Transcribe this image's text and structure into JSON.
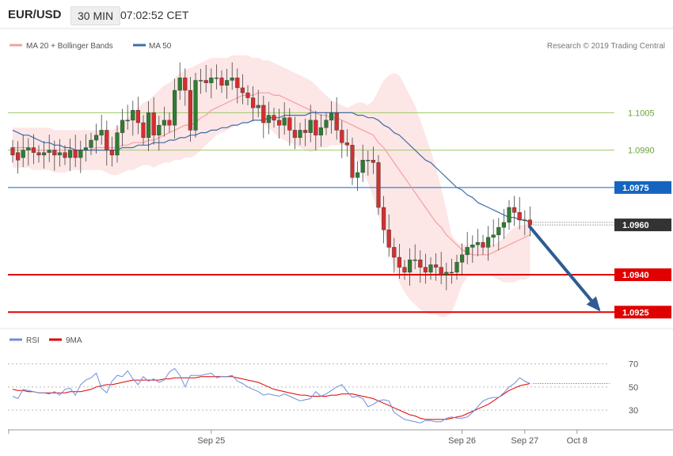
{
  "header": {
    "symbol": "EUR/USD",
    "timeframe": "30 MIN",
    "time": "07:02:52 CET"
  },
  "credit": "Research © 2019 Trading Central",
  "colors": {
    "up_candle": "#2e7d32",
    "down_candle": "#d32f2f",
    "band_fill": "#fde6e6",
    "ma20": "#f4a0a0",
    "ma50": "#3f6ea8",
    "pivot": "#9ccc65",
    "resistance": "#1565c0",
    "support": "#e00000",
    "last_price": "#333333",
    "arrow": "#2e5c93",
    "rsi": "#6f8ed9",
    "rsi_ma": "#e00000"
  },
  "chart_data": [
    {
      "type": "candlestick",
      "legend": [
        {
          "label": "MA 20 + Bollinger Bands",
          "color": "#f4a0a0"
        },
        {
          "label": "MA 50",
          "color": "#3f6ea8"
        }
      ],
      "ylim": [
        1.092,
        1.1028
      ],
      "x_ticks": [
        {
          "label": "Sep 25",
          "index": 38
        },
        {
          "label": "Sep 26",
          "index": 86
        },
        {
          "label": "Sep 27",
          "index": 98
        },
        {
          "label": "Oct 8",
          "index": 108
        }
      ],
      "right_tick_labels": [
        "1.1005",
        "1.0990"
      ],
      "levels": [
        {
          "label": "1.1005",
          "value": 1.1005,
          "kind": "pivot"
        },
        {
          "label": "1.0990",
          "value": 1.099,
          "kind": "pivot"
        },
        {
          "label": "1.0975",
          "value": 1.0975,
          "kind": "resistance"
        },
        {
          "label": "1.0960",
          "value": 1.096,
          "kind": "last"
        },
        {
          "label": "1.0940",
          "value": 1.094,
          "kind": "support"
        },
        {
          "label": "1.0925",
          "value": 1.0925,
          "kind": "support"
        }
      ],
      "forecast": {
        "from_index": 98,
        "from_value": 1.096,
        "to_index": 113,
        "to_value": 1.0925
      },
      "candles": [
        [
          1.0991,
          1.0988
        ],
        [
          1.0989,
          1.0986
        ],
        [
          1.0987,
          1.099
        ],
        [
          1.099,
          1.0991
        ],
        [
          1.0991,
          1.0989
        ],
        [
          1.0989,
          1.0988
        ],
        [
          1.0988,
          1.0989
        ],
        [
          1.0989,
          1.099
        ],
        [
          1.099,
          1.0988
        ],
        [
          1.0988,
          1.0989
        ],
        [
          1.0989,
          1.0987
        ],
        [
          1.0987,
          1.099
        ],
        [
          1.099,
          1.0987
        ],
        [
          1.0987,
          1.099
        ],
        [
          1.099,
          1.0991
        ],
        [
          1.0991,
          1.0994
        ],
        [
          1.0994,
          1.0996
        ],
        [
          1.0996,
          1.0998
        ],
        [
          1.0998,
          1.099
        ],
        [
          1.099,
          1.0988
        ],
        [
          1.0988,
          1.0997
        ],
        [
          1.0997,
          1.1002
        ],
        [
          1.1002,
          1.1002
        ],
        [
          1.1002,
          1.1006
        ],
        [
          1.1006,
          1.1001
        ],
        [
          1.1001,
          1.0995
        ],
        [
          1.0995,
          1.1005
        ],
        [
          1.1005,
          1.0996
        ],
        [
          1.0996,
          1.1
        ],
        [
          1.1,
          1.1002
        ],
        [
          1.1002,
          1.1
        ],
        [
          1.1,
          1.1014
        ],
        [
          1.1014,
          1.1019
        ],
        [
          1.1019,
          1.1014
        ],
        [
          1.1014,
          1.0998
        ],
        [
          1.0998,
          1.1018
        ],
        [
          1.1018,
          1.1018
        ],
        [
          1.1018,
          1.1017
        ],
        [
          1.1017,
          1.1019
        ],
        [
          1.1019,
          1.1019
        ],
        [
          1.1019,
          1.1016
        ],
        [
          1.1016,
          1.1018
        ],
        [
          1.1018,
          1.1019
        ],
        [
          1.1019,
          1.1015
        ],
        [
          1.1015,
          1.1013
        ],
        [
          1.1013,
          1.1011
        ],
        [
          1.1011,
          1.1007
        ],
        [
          1.1007,
          1.1008
        ],
        [
          1.1008,
          1.1001
        ],
        [
          1.1001,
          1.1004
        ],
        [
          1.1004,
          1.1002
        ],
        [
          1.1002,
          1.1
        ],
        [
          1.1,
          1.1003
        ],
        [
          1.1003,
          1.0998
        ],
        [
          1.0998,
          1.0995
        ],
        [
          1.0995,
          1.0998
        ],
        [
          1.0998,
          1.0997
        ],
        [
          1.0997,
          1.1002
        ],
        [
          1.1002,
          1.0996
        ],
        [
          1.0996,
          1.0999
        ],
        [
          1.0999,
          1.1002
        ],
        [
          1.1002,
          1.1005
        ],
        [
          1.1005,
          1.0998
        ],
        [
          1.0998,
          1.0993
        ],
        [
          1.0993,
          1.0992
        ],
        [
          1.0992,
          1.0979
        ],
        [
          1.0979,
          1.0981
        ],
        [
          1.0981,
          1.0986
        ],
        [
          1.0986,
          1.0986
        ],
        [
          1.0986,
          1.0985
        ],
        [
          1.0985,
          1.0967
        ],
        [
          1.0967,
          1.0958
        ],
        [
          1.0958,
          1.0951
        ],
        [
          1.0951,
          1.0947
        ],
        [
          1.0947,
          1.0943
        ],
        [
          1.0943,
          1.0941
        ],
        [
          1.0941,
          1.0946
        ],
        [
          1.0946,
          1.0946
        ],
        [
          1.0946,
          1.0943
        ],
        [
          1.0943,
          1.0941
        ],
        [
          1.0941,
          1.0944
        ],
        [
          1.0944,
          1.0943
        ],
        [
          1.0943,
          1.094
        ],
        [
          1.094,
          1.0941
        ],
        [
          1.0941,
          1.0941
        ],
        [
          1.0941,
          1.0945
        ],
        [
          1.0945,
          1.0948
        ],
        [
          1.0948,
          1.0951
        ],
        [
          1.0951,
          1.0952
        ],
        [
          1.0952,
          1.0953
        ],
        [
          1.0953,
          1.0951
        ],
        [
          1.0951,
          1.0955
        ],
        [
          1.0955,
          1.0956
        ],
        [
          1.0956,
          1.0959
        ],
        [
          1.0959,
          1.0961
        ],
        [
          1.0961,
          1.0967
        ],
        [
          1.0967,
          1.0965
        ],
        [
          1.0965,
          1.0962
        ],
        [
          1.0962,
          1.0962
        ],
        [
          1.0962,
          1.096
        ]
      ],
      "ma20": [
        1.0991,
        1.0991,
        1.0991,
        1.0991,
        1.099,
        1.099,
        1.099,
        1.099,
        1.099,
        1.099,
        1.099,
        1.099,
        1.099,
        1.099,
        1.099,
        1.099,
        1.0991,
        1.0991,
        1.0991,
        1.0991,
        1.0991,
        1.0992,
        1.0992,
        1.0993,
        1.0993,
        1.0993,
        1.0994,
        1.0994,
        1.0995,
        1.0996,
        1.0997,
        1.0998,
        1.0999,
        1.1,
        1.1,
        1.1001,
        1.1003,
        1.1004,
        1.1006,
        1.1007,
        1.1008,
        1.1009,
        1.101,
        1.1011,
        1.1012,
        1.1012,
        1.1012,
        1.1013,
        1.1013,
        1.1013,
        1.1012,
        1.1012,
        1.1011,
        1.101,
        1.1009,
        1.1008,
        1.1007,
        1.1006,
        1.1005,
        1.1004,
        1.1004,
        1.1003,
        1.1003,
        1.1002,
        1.1001,
        1.1,
        1.0999,
        1.0998,
        1.0997,
        1.0996,
        1.0993,
        1.0991,
        1.0988,
        1.0985,
        1.0982,
        1.0979,
        1.0976,
        1.0973,
        1.097,
        1.0967,
        1.0964,
        1.0961,
        1.0959,
        1.0956,
        1.0954,
        1.0952,
        1.095,
        1.0949,
        1.0948,
        1.0948,
        1.0948,
        1.0948,
        1.0949,
        1.095,
        1.0951,
        1.0952,
        1.0953,
        1.0954,
        1.0955,
        1.0956
      ],
      "bb_upper": [
        1.0999,
        1.0999,
        1.0999,
        1.0999,
        1.0999,
        1.0999,
        1.0999,
        1.0999,
        1.0998,
        1.0998,
        1.0998,
        1.0998,
        1.0998,
        1.0998,
        1.0998,
        1.0998,
        1.0998,
        1.0998,
        1.0998,
        1.0998,
        1.0999,
        1.1001,
        1.1003,
        1.1005,
        1.1007,
        1.1009,
        1.101,
        1.1012,
        1.1014,
        1.1016,
        1.1017,
        1.1019,
        1.1021,
        1.1022,
        1.1023,
        1.1024,
        1.1025,
        1.1026,
        1.1027,
        1.1027,
        1.1027,
        1.1027,
        1.1028,
        1.1028,
        1.1028,
        1.1028,
        1.1027,
        1.1027,
        1.1026,
        1.1026,
        1.1025,
        1.1024,
        1.1023,
        1.1022,
        1.1021,
        1.102,
        1.1019,
        1.1018,
        1.1016,
        1.1014,
        1.1012,
        1.101,
        1.1009,
        1.1008,
        1.1007,
        1.1008,
        1.1009,
        1.1009,
        1.1008,
        1.101,
        1.1014,
        1.1018,
        1.102,
        1.1021,
        1.102,
        1.1016,
        1.1012,
        1.1008,
        1.1002,
        1.0996,
        1.099,
        1.0983,
        1.0975,
        1.0966,
        1.0956,
        1.0953,
        1.0952,
        1.0952,
        1.0952,
        1.0952,
        1.0952,
        1.0952,
        1.0952,
        1.0953,
        1.0955,
        1.0957,
        1.0959,
        1.096,
        1.096,
        1.0961
      ],
      "bb_lower": [
        1.0983,
        1.0983,
        1.0983,
        1.0983,
        1.0982,
        1.0982,
        1.0982,
        1.0982,
        1.0981,
        1.0981,
        1.0981,
        1.0982,
        1.0982,
        1.0982,
        1.0982,
        1.0982,
        1.0982,
        1.0982,
        1.0981,
        1.098,
        1.098,
        1.0981,
        1.0982,
        1.0982,
        1.0983,
        1.0984,
        1.0984,
        1.0983,
        1.0984,
        1.0985,
        1.0985,
        1.0986,
        1.0986,
        1.0987,
        1.0987,
        1.0988,
        1.099,
        1.0992,
        1.0994,
        1.0996,
        1.0997,
        1.0998,
        1.0999,
        1.1,
        1.1001,
        1.1001,
        1.1002,
        1.1002,
        1.1001,
        1.0999,
        1.0997,
        1.0995,
        1.0994,
        1.0993,
        1.0992,
        1.0991,
        1.099,
        1.0989,
        1.099,
        1.0991,
        1.0991,
        1.0992,
        1.0992,
        1.0992,
        1.0992,
        1.0989,
        1.0986,
        1.0982,
        1.0977,
        1.0971,
        1.0964,
        1.0958,
        1.095,
        1.0943,
        1.0937,
        1.0933,
        1.093,
        1.0928,
        1.0926,
        1.0925,
        1.0924,
        1.0924,
        1.0923,
        1.0923,
        1.0925,
        1.093,
        1.0936,
        1.0939,
        1.094,
        1.094,
        1.094,
        1.094,
        1.0939,
        1.0938,
        1.0937,
        1.0937,
        1.0937,
        1.0938,
        1.0938,
        1.0939
      ],
      "ma50": [
        1.0998,
        1.0997,
        1.0996,
        1.0996,
        1.0995,
        1.0994,
        1.0993,
        1.0993,
        1.0992,
        1.0992,
        1.0991,
        1.0991,
        1.099,
        1.099,
        1.099,
        1.099,
        1.099,
        1.099,
        1.099,
        1.099,
        1.099,
        1.0991,
        1.0991,
        1.0991,
        1.0992,
        1.0992,
        1.0992,
        1.0993,
        1.0993,
        1.0993,
        1.0994,
        1.0994,
        1.0995,
        1.0995,
        1.0996,
        1.0996,
        1.0997,
        1.0997,
        1.0998,
        1.0998,
        1.0999,
        1.0999,
        1.1,
        1.1,
        1.1001,
        1.1001,
        1.1002,
        1.1002,
        1.1002,
        1.1003,
        1.1003,
        1.1003,
        1.1004,
        1.1004,
        1.1004,
        1.1004,
        1.1004,
        1.1005,
        1.1005,
        1.1005,
        1.1005,
        1.1005,
        1.1005,
        1.1005,
        1.1005,
        1.1005,
        1.1004,
        1.1004,
        1.1003,
        1.1003,
        1.1002,
        1.1,
        1.0999,
        1.0997,
        1.0996,
        1.0994,
        1.0992,
        1.099,
        1.0988,
        1.0986,
        1.0985,
        1.0983,
        1.0981,
        1.0979,
        1.0977,
        1.0975,
        1.0974,
        1.0972,
        1.0971,
        1.0969,
        1.0968,
        1.0967,
        1.0966,
        1.0965,
        1.0964,
        1.0963,
        1.0963,
        1.0962,
        1.0962,
        1.0961
      ]
    },
    {
      "type": "line",
      "legend": [
        {
          "label": "RSI",
          "color": "#6f8ed9"
        },
        {
          "label": "9MA",
          "color": "#e00000"
        }
      ],
      "ylim": [
        15,
        80
      ],
      "y_ticks": [
        "70",
        "50",
        "30"
      ],
      "series": [
        {
          "name": "RSI",
          "values": [
            42,
            40,
            48,
            47,
            46,
            45,
            45,
            44,
            46,
            43,
            48,
            49,
            43,
            52,
            56,
            58,
            62,
            49,
            45,
            55,
            60,
            59,
            64,
            57,
            52,
            59,
            55,
            57,
            54,
            56,
            63,
            66,
            60,
            50,
            60,
            60,
            60,
            61,
            62,
            58,
            59,
            59,
            60,
            55,
            53,
            50,
            48,
            46,
            43,
            44,
            43,
            42,
            44,
            42,
            40,
            38,
            39,
            40,
            46,
            42,
            44,
            47,
            50,
            52,
            46,
            41,
            42,
            40,
            33,
            35,
            38,
            39,
            38,
            28,
            25,
            22,
            21,
            20,
            19,
            21,
            21,
            20,
            20,
            23,
            24,
            23,
            23,
            24,
            28,
            33,
            38,
            40,
            41,
            41,
            45,
            50,
            53,
            58,
            55,
            53
          ]
        },
        {
          "name": "9MA",
          "values": [
            48,
            47,
            47,
            46,
            46,
            45,
            45,
            45,
            45,
            45,
            45,
            46,
            46,
            46,
            47,
            48,
            50,
            51,
            52,
            52,
            53,
            54,
            55,
            56,
            56,
            56,
            56,
            56,
            56,
            57,
            57,
            58,
            58,
            58,
            58,
            58,
            59,
            59,
            59,
            59,
            59,
            59,
            59,
            58,
            57,
            56,
            55,
            54,
            52,
            50,
            48,
            47,
            46,
            45,
            44,
            43,
            43,
            42,
            42,
            42,
            42,
            43,
            43,
            44,
            44,
            44,
            43,
            42,
            41,
            40,
            38,
            36,
            34,
            32,
            30,
            28,
            26,
            25,
            23,
            22,
            22,
            22,
            22,
            22,
            23,
            24,
            25,
            27,
            29,
            31,
            33,
            35,
            38,
            41,
            44,
            47,
            49,
            51,
            52,
            53
          ]
        }
      ]
    }
  ]
}
